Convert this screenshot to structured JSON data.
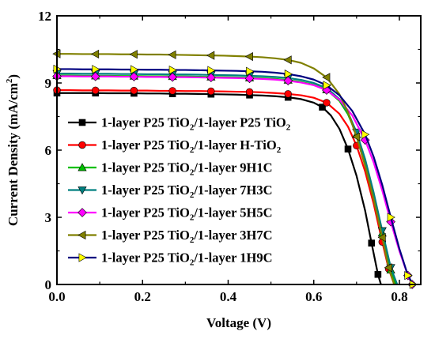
{
  "chart_data": {
    "type": "line",
    "xlabel": "Voltage (V)",
    "ylabel": "Current Density (mA/cm²)",
    "ylabel_base": "Current Density (mA/cm",
    "ylabel_sup": "2",
    "ylabel_end": ")",
    "xlim": [
      0.0,
      0.85
    ],
    "ylim": [
      0,
      12
    ],
    "xticks": [
      "0.0",
      "0.2",
      "0.4",
      "0.6",
      "0.8"
    ],
    "yticks": [
      "0",
      "3",
      "6",
      "9",
      "12"
    ],
    "legend_position": "center-left",
    "series": [
      {
        "name": "1-layer P25 TiO2/1-layer P25 TiO2",
        "label_parts": [
          "1-layer P25 TiO",
          "2",
          "/1-layer P25 TiO",
          "2"
        ],
        "color": "#000000",
        "marker": "square",
        "x": [
          0.0,
          0.03,
          0.06,
          0.09,
          0.12,
          0.15,
          0.18,
          0.21,
          0.24,
          0.27,
          0.3,
          0.33,
          0.36,
          0.39,
          0.42,
          0.45,
          0.48,
          0.51,
          0.54,
          0.57,
          0.6,
          0.62,
          0.64,
          0.66,
          0.68,
          0.7,
          0.72,
          0.735,
          0.75,
          0.757
        ],
        "y": [
          8.55,
          8.55,
          8.55,
          8.55,
          8.54,
          8.54,
          8.54,
          8.53,
          8.53,
          8.52,
          8.52,
          8.51,
          8.5,
          8.49,
          8.48,
          8.46,
          8.44,
          8.41,
          8.36,
          8.28,
          8.12,
          7.92,
          7.55,
          6.95,
          6.05,
          4.85,
          3.3,
          1.85,
          0.45,
          0.0
        ]
      },
      {
        "name": "1-layer P25 TiO2/1-layer H-TiO2",
        "label_parts": [
          "1-layer P25 TiO",
          "2",
          "/1-layer H-TiO",
          "2"
        ],
        "color": "#ff0000",
        "marker": "circle",
        "x": [
          0.0,
          0.03,
          0.06,
          0.09,
          0.12,
          0.15,
          0.18,
          0.21,
          0.24,
          0.27,
          0.3,
          0.33,
          0.36,
          0.39,
          0.42,
          0.45,
          0.48,
          0.51,
          0.54,
          0.57,
          0.6,
          0.63,
          0.66,
          0.68,
          0.7,
          0.72,
          0.74,
          0.76,
          0.775,
          0.788
        ],
        "y": [
          8.68,
          8.68,
          8.67,
          8.67,
          8.67,
          8.66,
          8.66,
          8.66,
          8.65,
          8.65,
          8.64,
          8.64,
          8.63,
          8.62,
          8.61,
          8.6,
          8.58,
          8.55,
          8.51,
          8.45,
          8.34,
          8.12,
          7.62,
          7.05,
          6.2,
          5.05,
          3.6,
          1.9,
          0.7,
          0.0
        ]
      },
      {
        "name": "1-layer P25 TiO2/1-layer 9H1C",
        "label_parts": [
          "1-layer P25 TiO",
          "2",
          "/1-layer 9H1C",
          ""
        ],
        "color": "#00c000",
        "marker": "triangle-up",
        "x": [
          0.0,
          0.03,
          0.06,
          0.09,
          0.12,
          0.15,
          0.18,
          0.21,
          0.24,
          0.27,
          0.3,
          0.33,
          0.36,
          0.39,
          0.42,
          0.45,
          0.48,
          0.51,
          0.54,
          0.57,
          0.6,
          0.63,
          0.66,
          0.68,
          0.7,
          0.72,
          0.74,
          0.76,
          0.78,
          0.792
        ],
        "y": [
          9.33,
          9.33,
          9.32,
          9.32,
          9.32,
          9.31,
          9.31,
          9.3,
          9.3,
          9.29,
          9.29,
          9.28,
          9.27,
          9.26,
          9.25,
          9.23,
          9.21,
          9.18,
          9.13,
          9.05,
          8.92,
          8.7,
          8.2,
          7.6,
          6.7,
          5.5,
          4.0,
          2.3,
          0.65,
          0.0
        ]
      },
      {
        "name": "1-layer P25 TiO2/1-layer 7H3C",
        "label_parts": [
          "1-layer P25 TiO",
          "2",
          "/1-layer 7H3C",
          ""
        ],
        "color": "#008080",
        "marker": "triangle-down",
        "x": [
          0.0,
          0.03,
          0.06,
          0.09,
          0.12,
          0.15,
          0.18,
          0.21,
          0.24,
          0.27,
          0.3,
          0.33,
          0.36,
          0.39,
          0.42,
          0.45,
          0.48,
          0.51,
          0.54,
          0.57,
          0.6,
          0.63,
          0.66,
          0.68,
          0.7,
          0.72,
          0.74,
          0.76,
          0.78,
          0.795
        ],
        "y": [
          9.42,
          9.42,
          9.41,
          9.41,
          9.41,
          9.4,
          9.4,
          9.39,
          9.39,
          9.38,
          9.38,
          9.37,
          9.36,
          9.35,
          9.34,
          9.32,
          9.3,
          9.27,
          9.22,
          9.14,
          9.0,
          8.78,
          8.28,
          7.68,
          6.8,
          5.6,
          4.1,
          2.4,
          0.75,
          0.0
        ]
      },
      {
        "name": "1-layer P25 TiO2/1-layer 5H5C",
        "label_parts": [
          "1-layer P25 TiO",
          "2",
          "/1-layer 5H5C",
          ""
        ],
        "color": "#ff00ff",
        "marker": "diamond",
        "x": [
          0.0,
          0.03,
          0.06,
          0.09,
          0.12,
          0.15,
          0.18,
          0.21,
          0.24,
          0.27,
          0.3,
          0.33,
          0.36,
          0.39,
          0.42,
          0.45,
          0.48,
          0.51,
          0.54,
          0.57,
          0.6,
          0.63,
          0.66,
          0.69,
          0.72,
          0.74,
          0.76,
          0.78,
          0.8,
          0.82,
          0.83
        ],
        "y": [
          9.3,
          9.3,
          9.29,
          9.29,
          9.29,
          9.28,
          9.28,
          9.27,
          9.27,
          9.26,
          9.26,
          9.25,
          9.24,
          9.23,
          9.22,
          9.2,
          9.18,
          9.15,
          9.1,
          9.02,
          8.9,
          8.68,
          8.25,
          7.55,
          6.45,
          5.45,
          4.2,
          2.8,
          1.5,
          0.4,
          0.0
        ]
      },
      {
        "name": "1-layer P25 TiO2/1-layer 3H7C",
        "label_parts": [
          "1-layer P25 TiO",
          "2",
          "/1-layer 3H7C",
          ""
        ],
        "color": "#808000",
        "marker": "triangle-left",
        "x": [
          0.0,
          0.03,
          0.06,
          0.09,
          0.12,
          0.15,
          0.18,
          0.21,
          0.24,
          0.27,
          0.3,
          0.33,
          0.36,
          0.39,
          0.42,
          0.45,
          0.48,
          0.51,
          0.54,
          0.57,
          0.6,
          0.63,
          0.66,
          0.68,
          0.7,
          0.72,
          0.74,
          0.76,
          0.775,
          0.788
        ],
        "y": [
          10.3,
          10.3,
          10.29,
          10.29,
          10.29,
          10.28,
          10.28,
          10.27,
          10.27,
          10.26,
          10.25,
          10.24,
          10.23,
          10.22,
          10.2,
          10.18,
          10.15,
          10.1,
          10.03,
          9.9,
          9.65,
          9.25,
          8.5,
          7.7,
          6.6,
          5.3,
          3.8,
          2.1,
          0.75,
          0.0
        ]
      },
      {
        "name": "1-layer P25 TiO2/1-layer 1H9C",
        "label_parts": [
          "1-layer P25 TiO",
          "2",
          "/1-layer 1H9C",
          ""
        ],
        "color": "#ffff00",
        "line_color": "#000080",
        "marker": "triangle-right",
        "x": [
          0.0,
          0.03,
          0.06,
          0.09,
          0.12,
          0.15,
          0.18,
          0.21,
          0.24,
          0.27,
          0.3,
          0.33,
          0.36,
          0.39,
          0.42,
          0.45,
          0.48,
          0.51,
          0.54,
          0.57,
          0.6,
          0.63,
          0.66,
          0.69,
          0.72,
          0.74,
          0.76,
          0.78,
          0.8,
          0.82,
          0.832
        ],
        "y": [
          9.62,
          9.62,
          9.61,
          9.61,
          9.61,
          9.6,
          9.6,
          9.59,
          9.59,
          9.58,
          9.58,
          9.57,
          9.56,
          9.55,
          9.54,
          9.52,
          9.5,
          9.46,
          9.4,
          9.3,
          9.15,
          8.9,
          8.45,
          7.75,
          6.7,
          5.7,
          4.45,
          3.0,
          1.6,
          0.4,
          0.0
        ]
      }
    ]
  }
}
